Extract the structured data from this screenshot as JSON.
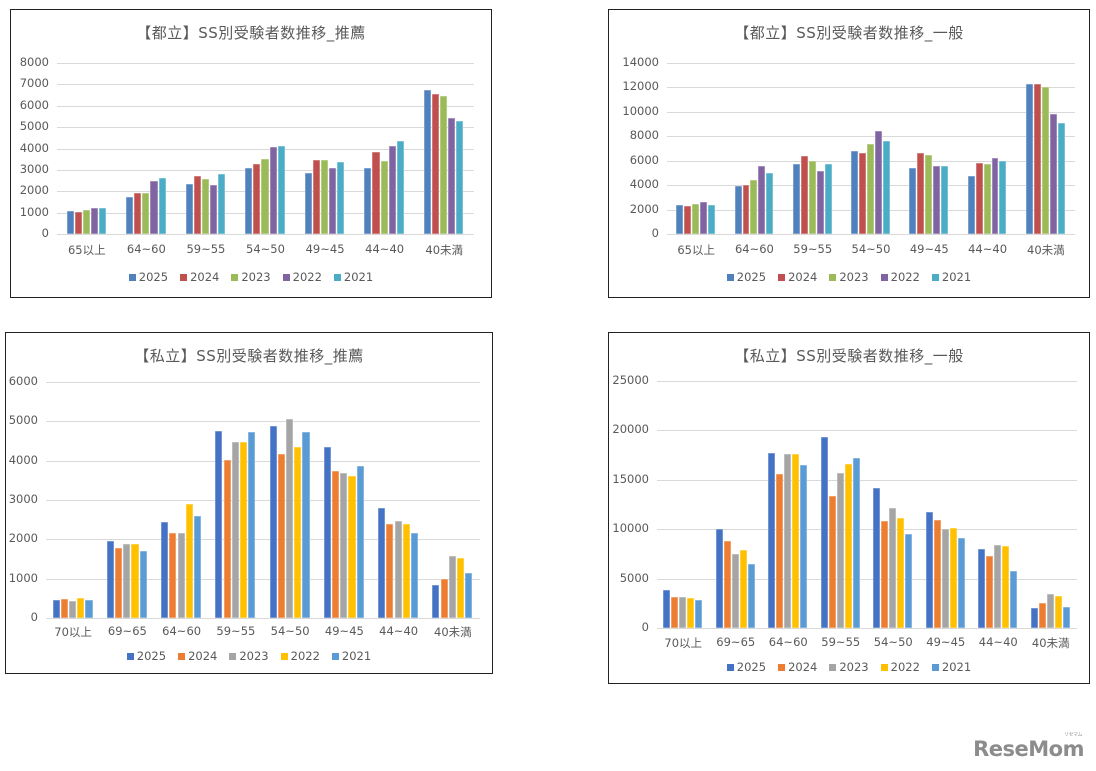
{
  "chart_data": [
    {
      "id": "chart1",
      "type": "bar",
      "title": "【都立】SS別受験者数推移_推薦",
      "xlabel": "",
      "ylabel": "",
      "ylim": [
        0,
        8000
      ],
      "yticks": [
        0,
        1000,
        2000,
        3000,
        4000,
        5000,
        6000,
        7000,
        8000
      ],
      "grid": true,
      "legend_position": "bottom",
      "categories": [
        "65以上",
        "64~60",
        "59~55",
        "54~50",
        "49~45",
        "44~40",
        "40未満"
      ],
      "series": [
        {
          "name": "2025",
          "color": "#4f81bd",
          "values": [
            1080,
            1750,
            2330,
            3080,
            2870,
            3080,
            6750
          ]
        },
        {
          "name": "2024",
          "color": "#c0504d",
          "values": [
            1020,
            1900,
            2720,
            3280,
            3480,
            3830,
            6550
          ]
        },
        {
          "name": "2023",
          "color": "#9bbb59",
          "values": [
            1140,
            1930,
            2560,
            3530,
            3470,
            3410,
            6470
          ]
        },
        {
          "name": "2022",
          "color": "#8064a2",
          "values": [
            1200,
            2480,
            2300,
            4050,
            3110,
            4130,
            5430
          ]
        },
        {
          "name": "2021",
          "color": "#4bacc6",
          "values": [
            1230,
            2600,
            2830,
            4100,
            3380,
            4350,
            5290
          ]
        }
      ]
    },
    {
      "id": "chart2",
      "type": "bar",
      "title": "【都立】SS別受験者数推移_一般",
      "xlabel": "",
      "ylabel": "",
      "ylim": [
        0,
        14000
      ],
      "yticks": [
        0,
        2000,
        4000,
        6000,
        8000,
        10000,
        12000,
        14000
      ],
      "grid": true,
      "legend_position": "bottom",
      "categories": [
        "65以上",
        "64~60",
        "59~55",
        "54~50",
        "49~45",
        "44~40",
        "40未満"
      ],
      "series": [
        {
          "name": "2025",
          "color": "#4f81bd",
          "values": [
            2400,
            3900,
            5700,
            6800,
            5400,
            4750,
            12300
          ]
        },
        {
          "name": "2024",
          "color": "#c0504d",
          "values": [
            2300,
            4000,
            6350,
            6650,
            6650,
            5850,
            12300
          ]
        },
        {
          "name": "2023",
          "color": "#9bbb59",
          "values": [
            2450,
            4400,
            5950,
            7400,
            6500,
            5700,
            12000
          ]
        },
        {
          "name": "2022",
          "color": "#8064a2",
          "values": [
            2600,
            5600,
            5150,
            8450,
            5550,
            6200,
            9850
          ]
        },
        {
          "name": "2021",
          "color": "#4bacc6",
          "values": [
            2400,
            5000,
            5750,
            7600,
            5600,
            5950,
            9050
          ]
        }
      ]
    },
    {
      "id": "chart3",
      "type": "bar",
      "title": "【私立】SS別受験者数推移_推薦",
      "xlabel": "",
      "ylabel": "",
      "ylim": [
        0,
        6000
      ],
      "yticks": [
        0,
        1000,
        2000,
        3000,
        4000,
        5000,
        6000
      ],
      "grid": true,
      "legend_position": "bottom",
      "categories": [
        "70以上",
        "69~65",
        "64~60",
        "59~55",
        "54~50",
        "49~45",
        "44~40",
        "40未満"
      ],
      "series": [
        {
          "name": "2025",
          "color": "#4472c4",
          "values": [
            460,
            1950,
            2440,
            4750,
            4880,
            4340,
            2800,
            850
          ]
        },
        {
          "name": "2024",
          "color": "#ed7d31",
          "values": [
            480,
            1790,
            2170,
            4020,
            4160,
            3730,
            2400,
            980
          ]
        },
        {
          "name": "2023",
          "color": "#a5a5a5",
          "values": [
            430,
            1880,
            2160,
            4480,
            5060,
            3680,
            2460,
            1570
          ]
        },
        {
          "name": "2022",
          "color": "#ffc000",
          "values": [
            510,
            1890,
            2910,
            4480,
            4360,
            3600,
            2390,
            1520
          ]
        },
        {
          "name": "2021",
          "color": "#5b9bd5",
          "values": [
            450,
            1710,
            2590,
            4740,
            4730,
            3860,
            2170,
            1150
          ]
        }
      ]
    },
    {
      "id": "chart4",
      "type": "bar",
      "title": "【私立】SS別受験者数推移_一般",
      "xlabel": "",
      "ylabel": "",
      "ylim": [
        0,
        25000
      ],
      "yticks": [
        0,
        5000,
        10000,
        15000,
        20000,
        25000
      ],
      "grid": true,
      "legend_position": "bottom",
      "categories": [
        "70以上",
        "69~65",
        "64~60",
        "59~55",
        "54~50",
        "49~45",
        "44~40",
        "40未満"
      ],
      "series": [
        {
          "name": "2025",
          "color": "#4472c4",
          "values": [
            3800,
            10050,
            17750,
            19300,
            14150,
            11700,
            7950,
            2000
          ]
        },
        {
          "name": "2024",
          "color": "#ed7d31",
          "values": [
            3100,
            8850,
            15600,
            13350,
            10800,
            10900,
            7300,
            2500
          ]
        },
        {
          "name": "2023",
          "color": "#a5a5a5",
          "values": [
            3150,
            7450,
            17600,
            15700,
            12100,
            10000,
            8450,
            3450
          ]
        },
        {
          "name": "2022",
          "color": "#ffc000",
          "values": [
            3050,
            7900,
            17650,
            16550,
            11150,
            10150,
            8300,
            3250
          ]
        },
        {
          "name": "2021",
          "color": "#5b9bd5",
          "values": [
            2800,
            6500,
            16450,
            17200,
            9500,
            9100,
            5800,
            2100
          ]
        }
      ]
    }
  ],
  "charts": [
    {
      "title": "【都立】SS別受験者数推移_推薦"
    },
    {
      "title": "【都立】SS別受験者数推移_一般"
    },
    {
      "title": "【私立】SS別受験者数推移_推薦"
    },
    {
      "title": "【私立】SS別受験者数推移_一般"
    }
  ],
  "logo": {
    "text": "ReseMom",
    "kana": "リセマム"
  }
}
